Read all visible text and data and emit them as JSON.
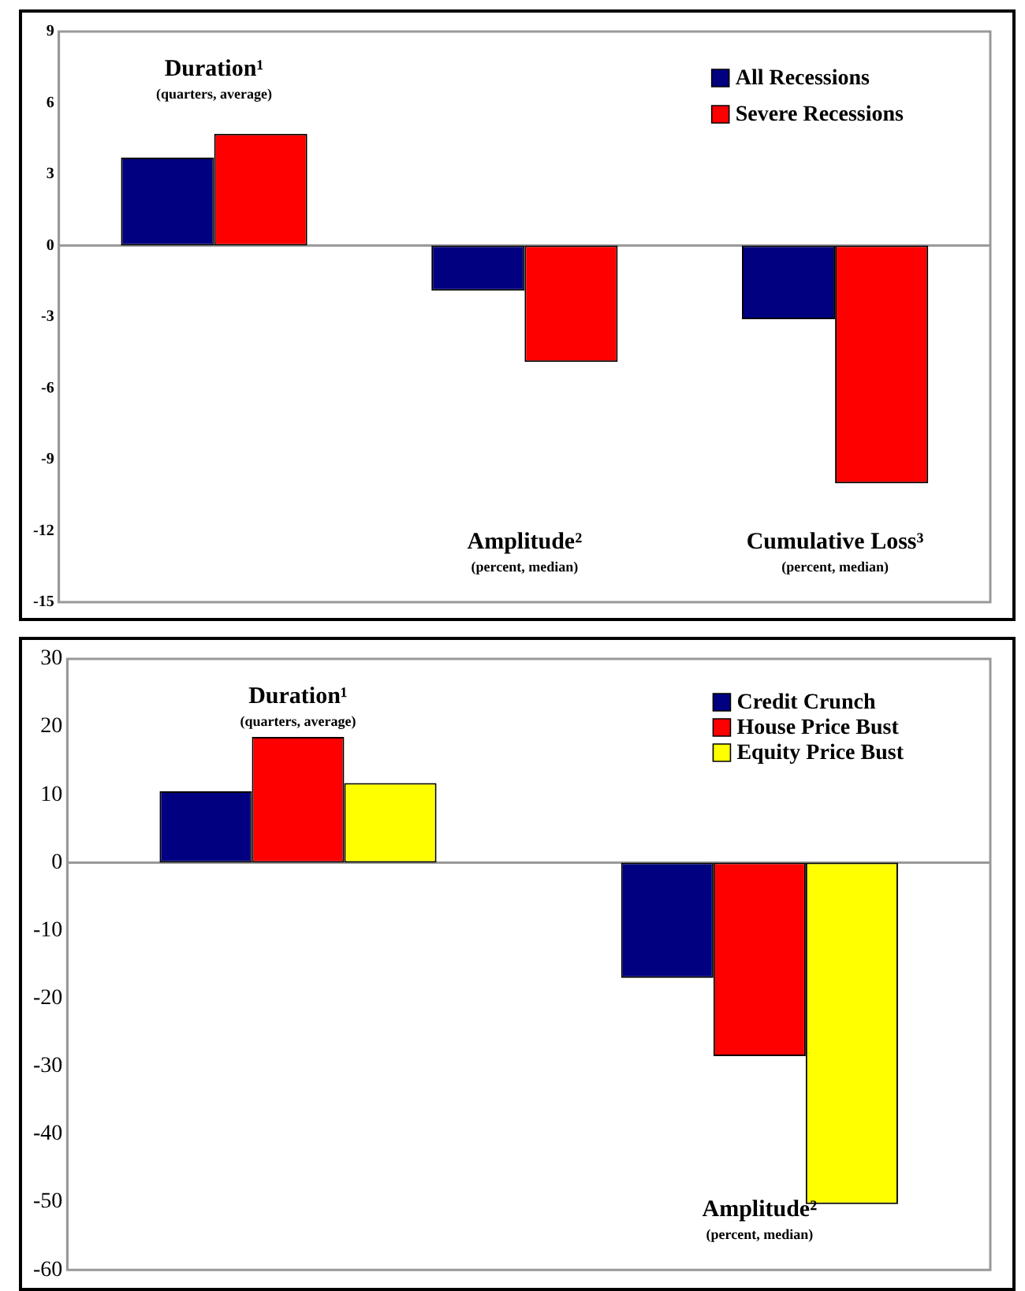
{
  "chart_data": [
    {
      "type": "bar",
      "categories": [
        "Duration¹",
        "Amplitude²",
        "Cumulative Loss³"
      ],
      "series": [
        {
          "name": "All Recessions",
          "color": "#000080",
          "values": [
            3.7,
            -1.9,
            -3.1
          ]
        },
        {
          "name": "Severe Recessions",
          "color": "#ff0000",
          "values": [
            4.7,
            -4.9,
            -10.0
          ]
        }
      ],
      "annotations": [
        "(quarters, average)",
        "(percent, median)",
        "(percent, median)"
      ],
      "ylim": [
        -15,
        9
      ],
      "yticks": [
        -15,
        -12,
        -9,
        -6,
        -3,
        0,
        3,
        6,
        9
      ],
      "legend": "top right"
    },
    {
      "type": "bar",
      "categories": [
        "Duration¹",
        "Amplitude²"
      ],
      "series": [
        {
          "name": "Credit Crunch",
          "color": "#000080",
          "values": [
            10.5,
            -17
          ]
        },
        {
          "name": "House Price Bust",
          "color": "#ff0000",
          "values": [
            18.5,
            -28.5
          ]
        },
        {
          "name": "Equity Price Bust",
          "color": "#ffff00",
          "values": [
            11.7,
            -50.3
          ]
        }
      ],
      "annotations": [
        "(quarters, average)",
        "(percent, median)"
      ],
      "ylim": [
        -60,
        30
      ],
      "yticks": [
        -60,
        -50,
        -40,
        -30,
        -20,
        -10,
        0,
        10,
        20,
        30
      ],
      "legend": "top right"
    }
  ]
}
